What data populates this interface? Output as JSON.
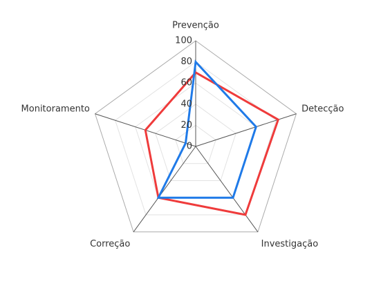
{
  "chart_data": {
    "type": "radar",
    "categories": [
      "Prevenção",
      "Detecção",
      "Investigação",
      "Correção",
      "Monitoramento"
    ],
    "series": [
      {
        "color": "#ef3b3b",
        "values": [
          70,
          82,
          80,
          60,
          50
        ]
      },
      {
        "color": "#1f7ae8",
        "values": [
          80,
          60,
          60,
          60,
          10
        ]
      }
    ],
    "rlim": [
      0,
      100
    ],
    "rticks": [
      0,
      20,
      40,
      60,
      80,
      100
    ],
    "grid": true
  }
}
